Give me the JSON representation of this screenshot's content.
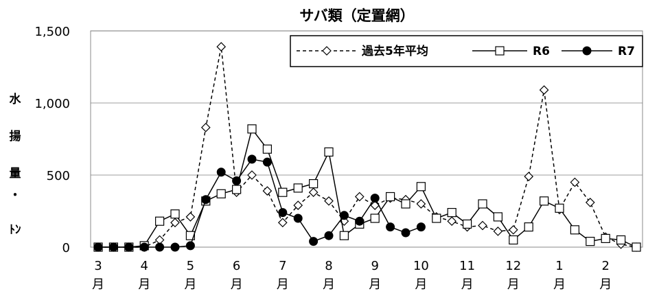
{
  "chart_data": {
    "type": "line",
    "title": "サバ類（定置網）",
    "ylabel_chars": [
      "水",
      "揚",
      "量",
      "・",
      "ﾄﾝ"
    ],
    "ylim": [
      0,
      1500
    ],
    "yticks": [
      "0",
      "500",
      "1,000",
      "1,500"
    ],
    "ytick_values": [
      0,
      500,
      1000,
      1500
    ],
    "month_labels": [
      "3",
      "4",
      "5",
      "6",
      "7",
      "8",
      "9",
      "10",
      "11",
      "12",
      "1",
      "2"
    ],
    "month_unit": "月",
    "grid": true,
    "legend_position": "top-right",
    "highlight": {
      "series": "R7",
      "index": 22,
      "value": 140,
      "color": "#ffff00"
    },
    "series": [
      {
        "name": "過去5年平均",
        "style": "dashed",
        "marker": "diamond",
        "color": "#000000",
        "values": [
          0,
          0,
          0,
          0,
          50,
          170,
          210,
          830,
          1390,
          380,
          500,
          390,
          170,
          290,
          380,
          320,
          180,
          350,
          290,
          340,
          330,
          300,
          210,
          180,
          140,
          150,
          110,
          120,
          490,
          1090,
          260,
          450,
          310,
          70,
          20,
          0
        ]
      },
      {
        "name": "R6",
        "style": "solid",
        "marker": "square",
        "color": "#000000",
        "values": [
          0,
          0,
          0,
          10,
          180,
          230,
          80,
          320,
          370,
          400,
          820,
          680,
          380,
          410,
          440,
          660,
          80,
          160,
          200,
          350,
          300,
          420,
          200,
          240,
          160,
          300,
          210,
          50,
          140,
          320,
          270,
          120,
          40,
          60,
          50,
          0
        ]
      },
      {
        "name": "R7",
        "style": "solid",
        "marker": "circle",
        "color": "#000000",
        "values": [
          0,
          0,
          0,
          0,
          0,
          0,
          10,
          330,
          520,
          460,
          610,
          590,
          240,
          200,
          40,
          80,
          220,
          180,
          340,
          140,
          100,
          140
        ]
      }
    ]
  }
}
